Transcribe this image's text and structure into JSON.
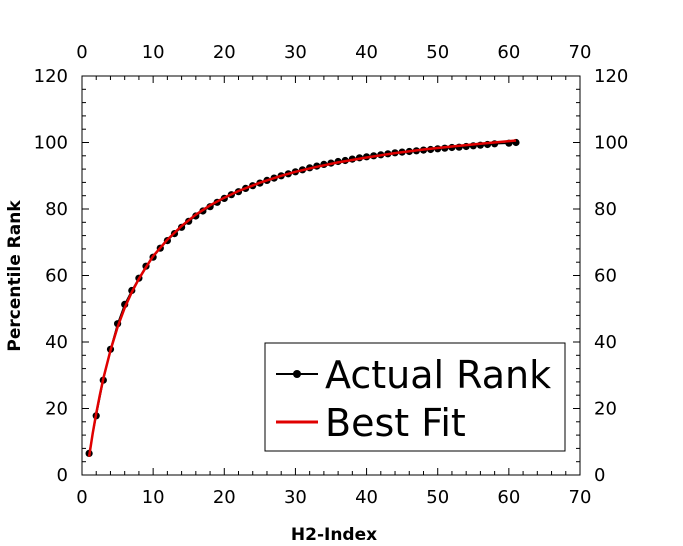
{
  "chart_data": {
    "type": "line",
    "xlabel": "H2-Index",
    "ylabel": "Percentile Rank",
    "xlim": [
      0,
      70
    ],
    "ylim": [
      0,
      120
    ],
    "xticks": [
      "0",
      "10",
      "20",
      "30",
      "40",
      "50",
      "60",
      "70"
    ],
    "yticks": [
      "0",
      "20",
      "40",
      "60",
      "80",
      "100",
      "120"
    ],
    "grid": false,
    "legend_position": "bottom-right",
    "series": [
      {
        "name": "Actual Rank",
        "style": "line-markers",
        "color": "#000000",
        "x": [
          1,
          2,
          3,
          4,
          5,
          6,
          7,
          8,
          9,
          10,
          11,
          12,
          13,
          14,
          15,
          16,
          17,
          18,
          19,
          20,
          21,
          22,
          23,
          24,
          25,
          26,
          27,
          28,
          29,
          30,
          31,
          32,
          33,
          34,
          35,
          36,
          37,
          38,
          39,
          40,
          41,
          42,
          43,
          44,
          45,
          46,
          47,
          48,
          49,
          50,
          51,
          52,
          53,
          54,
          55,
          56,
          57,
          58,
          60,
          61
        ],
        "y": [
          6.5,
          17.8,
          28.5,
          37.8,
          45.5,
          51.3,
          55.5,
          59.2,
          62.8,
          65.5,
          68.2,
          70.5,
          72.6,
          74.5,
          76.3,
          77.9,
          79.4,
          80.7,
          82.0,
          83.2,
          84.3,
          85.2,
          86.2,
          87.0,
          87.8,
          88.6,
          89.3,
          90.0,
          90.6,
          91.2,
          91.8,
          92.4,
          92.9,
          93.4,
          93.8,
          94.3,
          94.6,
          95.0,
          95.4,
          95.7,
          96.0,
          96.3,
          96.6,
          96.9,
          97.1,
          97.3,
          97.5,
          97.7,
          97.9,
          98.1,
          98.3,
          98.5,
          98.6,
          98.8,
          99.0,
          99.2,
          99.4,
          99.6,
          99.8,
          100.0
        ]
      },
      {
        "name": "Best Fit",
        "style": "line",
        "color": "#e00000",
        "x": [
          1,
          1.5,
          2,
          2.5,
          3,
          4,
          5,
          6,
          7,
          8,
          9,
          10,
          12,
          14,
          16,
          18,
          20,
          22,
          25,
          28,
          30,
          33,
          36,
          40,
          44,
          48,
          52,
          56,
          61
        ],
        "y": [
          5.5,
          12.5,
          18.5,
          24,
          29,
          37.5,
          44.5,
          50.3,
          55,
          59,
          62.5,
          65.8,
          70.8,
          74.9,
          78.3,
          81.1,
          83.4,
          85.4,
          87.9,
          90.0,
          91.2,
          92.7,
          94.0,
          95.5,
          96.8,
          97.9,
          98.8,
          99.6,
          100.6
        ]
      }
    ]
  }
}
